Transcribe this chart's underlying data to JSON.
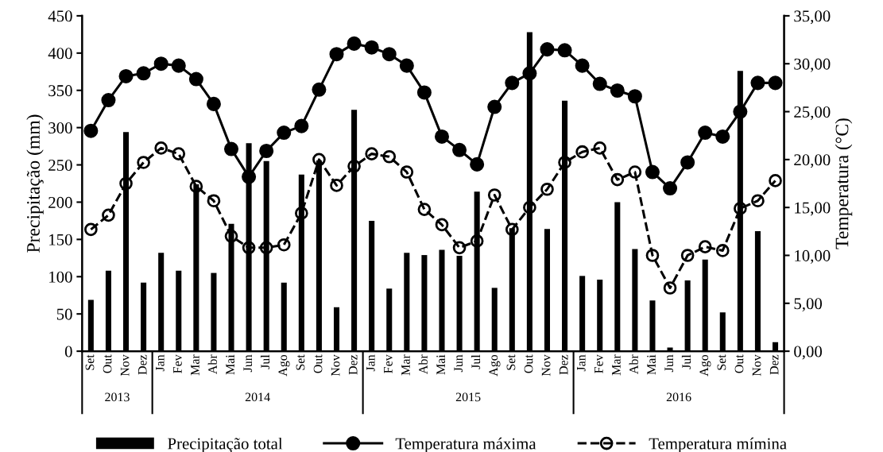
{
  "chart_data": {
    "type": "bar",
    "categories": [
      "Set",
      "Out",
      "Nov",
      "Dez",
      "Jan",
      "Fev",
      "Mar",
      "Abr",
      "Mai",
      "Jun",
      "Jul",
      "Ago",
      "Set",
      "Out",
      "Nov",
      "Dez",
      "Jan",
      "Fev",
      "Mar",
      "Abr",
      "Mai",
      "Jun",
      "Jul",
      "Ago",
      "Set",
      "Out",
      "Nov",
      "Dez",
      "Jan",
      "Fev",
      "Mar",
      "Abr",
      "Mai",
      "Jun",
      "Jul",
      "Ago",
      "Set",
      "Out",
      "Nov",
      "Dez"
    ],
    "series": [
      {
        "name": "Precipitação total",
        "color": "#000000",
        "values": [
          69,
          108,
          294,
          92,
          132,
          108,
          224,
          105,
          171,
          279,
          255,
          92,
          237,
          256,
          59,
          324,
          175,
          84,
          132,
          129,
          136,
          128,
          214,
          85,
          165,
          428,
          164,
          336,
          101,
          96,
          200,
          137,
          68,
          5,
          95,
          123,
          52,
          376,
          161,
          12
        ]
      },
      {
        "name": "Temperatura máxima",
        "type": "line",
        "axis": "y2",
        "color": "#000000",
        "marker": "circle",
        "line_style": "solid",
        "values": [
          23.0,
          26.2,
          28.7,
          29.0,
          30.0,
          29.8,
          28.4,
          25.8,
          21.1,
          18.2,
          20.9,
          22.8,
          23.5,
          27.3,
          31.0,
          32.1,
          31.7,
          31.0,
          29.8,
          27.0,
          22.4,
          21.0,
          19.5,
          25.5,
          28.0,
          29.0,
          31.5,
          31.4,
          29.8,
          27.9,
          27.2,
          26.6,
          18.7,
          17.0,
          19.7,
          22.8,
          22.4,
          25.0,
          28.0,
          28.0
        ]
      },
      {
        "name": "Temperatura mímina",
        "type": "line",
        "axis": "y2",
        "color": "#000000",
        "marker": "circle",
        "line_style": "dashed",
        "values": [
          12.7,
          14.2,
          17.5,
          19.7,
          21.2,
          20.6,
          17.2,
          15.7,
          12.0,
          10.8,
          10.8,
          11.1,
          14.4,
          20.0,
          17.3,
          19.3,
          20.6,
          20.3,
          18.7,
          14.8,
          13.2,
          10.8,
          11.5,
          16.3,
          12.7,
          15.0,
          16.9,
          19.7,
          20.8,
          21.2,
          17.9,
          18.7,
          10.0,
          6.6,
          10.0,
          10.9,
          10.5,
          14.9,
          15.7,
          17.8
        ]
      }
    ],
    "ylabel": "Precipitação (mm)",
    "y2label": "Temperatura (°C)",
    "ylim": [
      0,
      450
    ],
    "yticks": [
      0,
      50,
      100,
      150,
      200,
      250,
      300,
      350,
      400,
      450
    ],
    "y2lim": [
      0,
      35
    ],
    "y2ticks": [
      {
        "value": 0,
        "label": "0,00"
      },
      {
        "value": 5,
        "label": "5,00"
      },
      {
        "value": 10,
        "label": "10,00"
      },
      {
        "value": 15,
        "label": "15,00"
      },
      {
        "value": 20,
        "label": "20,00"
      },
      {
        "value": 25,
        "label": "25,00"
      },
      {
        "value": 30,
        "label": "30,00"
      },
      {
        "value": 35,
        "label": "35,00"
      }
    ],
    "annotations": [
      "2013",
      "2014",
      "2015",
      "2016"
    ],
    "grid": false,
    "legend": "bottom"
  }
}
